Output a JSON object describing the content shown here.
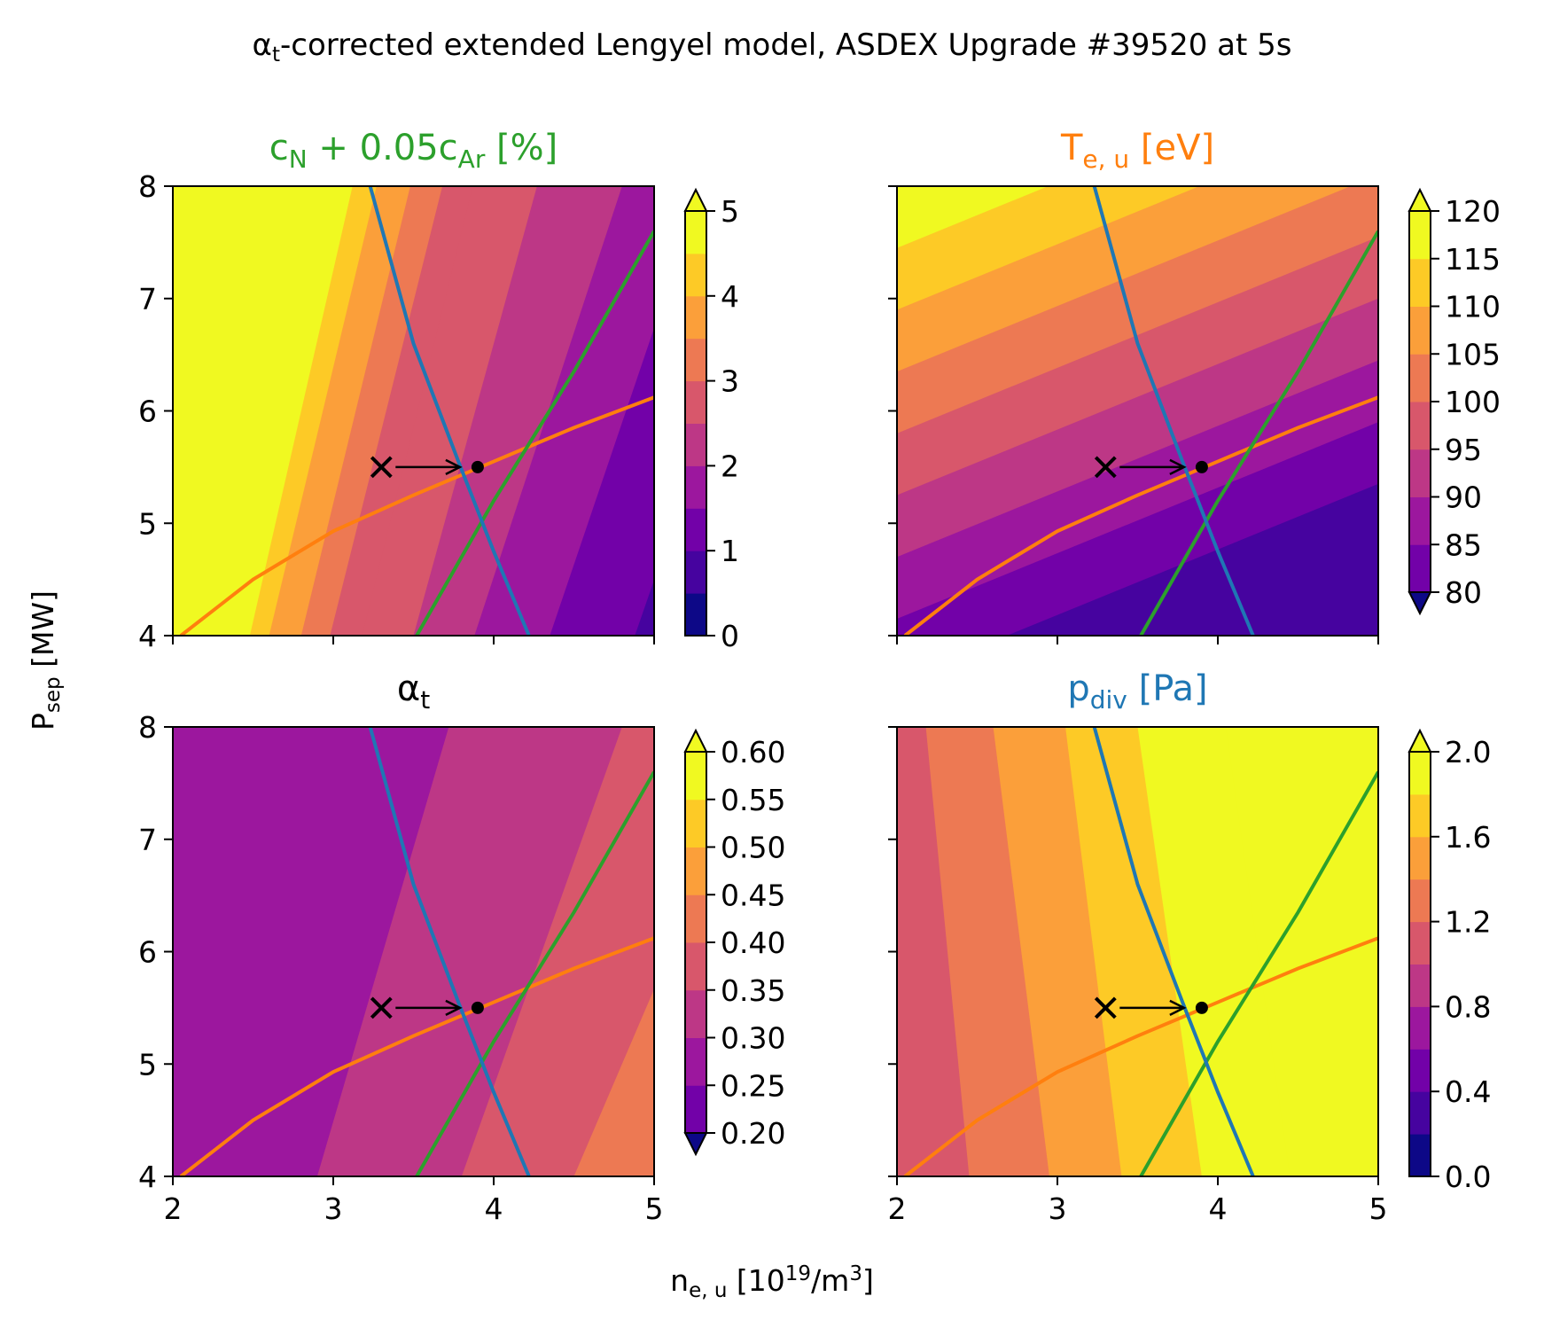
{
  "figure": {
    "suptitle": {
      "pre": "α",
      "sub": "t",
      "post": "-corrected extended Lengyel model, ASDEX Upgrade #39520 at 5s"
    },
    "xlabel": {
      "pre": "n",
      "sub": "e, u",
      "mid": " [10",
      "sup": "19",
      "mid2": "/m",
      "sup2": "3",
      "post": "]"
    },
    "ylabel": {
      "pre": "P",
      "sub": "sep",
      "post": " [MW]"
    }
  },
  "colors": {
    "title_cN": "#2ca02c",
    "title_Te": "#ff7f0e",
    "title_alpha": "#000000",
    "title_pdiv": "#1f77b4",
    "curve_blue": "#1f77b4",
    "curve_green": "#2ca02c",
    "curve_orange": "#ff7f0e",
    "plasma_levels": [
      "#0d0887",
      "#46039f",
      "#7201a8",
      "#9c179e",
      "#bd3786",
      "#d8576b",
      "#ed7953",
      "#fb9f3a",
      "#fdca26",
      "#f0f921"
    ]
  },
  "chart_data": [
    {
      "id": "cN",
      "type": "contourf",
      "title": {
        "pre": "c",
        "sub": "N",
        "mid": " + 0.05c",
        "sub2": "Ar",
        "post": " [%]"
      },
      "xlim": [
        2,
        5
      ],
      "ylim": [
        4,
        8
      ],
      "xticks": [
        "2",
        "3",
        "4",
        "5"
      ],
      "yticks": [
        "4",
        "5",
        "6",
        "7",
        "8"
      ],
      "show_xticklabels": false,
      "show_yticklabels": true,
      "colorbar": {
        "levels": [
          0,
          0.5,
          1,
          1.5,
          2,
          2.5,
          3,
          3.5,
          4,
          4.5,
          5
        ],
        "ticks": [
          "0",
          "1",
          "2",
          "3",
          "4",
          "5"
        ],
        "extend": "max"
      },
      "field_samples": [
        {
          "x": 2.0,
          "y": 4.0,
          "z": 5.5
        },
        {
          "x": 2.5,
          "y": 4.0,
          "z": 4.3
        },
        {
          "x": 3.0,
          "y": 4.0,
          "z": 3.2
        },
        {
          "x": 3.5,
          "y": 4.0,
          "z": 2.3
        },
        {
          "x": 4.0,
          "y": 4.0,
          "z": 1.4
        },
        {
          "x": 4.5,
          "y": 4.0,
          "z": 0.8
        },
        {
          "x": 5.0,
          "y": 4.0,
          "z": 0.3
        },
        {
          "x": 3.3,
          "y": 8.0,
          "z": 5.0
        },
        {
          "x": 4.0,
          "y": 8.0,
          "z": 3.5
        },
        {
          "x": 5.0,
          "y": 8.0,
          "z": 2.0
        }
      ]
    },
    {
      "id": "Te",
      "type": "contourf",
      "title": {
        "pre": "T",
        "sub": "e, u",
        "post": " [eV]"
      },
      "xlim": [
        2,
        5
      ],
      "ylim": [
        4,
        8
      ],
      "xticks": [
        "2",
        "3",
        "4",
        "5"
      ],
      "yticks": [
        "4",
        "5",
        "6",
        "7",
        "8"
      ],
      "show_xticklabels": false,
      "show_yticklabels": false,
      "colorbar": {
        "levels": [
          80,
          85,
          90,
          95,
          100,
          105,
          110,
          115,
          120
        ],
        "ticks": [
          "80",
          "85",
          "90",
          "95",
          "100",
          "105",
          "110",
          "115",
          "120"
        ],
        "extend": "both"
      },
      "field_samples": [
        {
          "x": 2.0,
          "y": 8.0,
          "z": 122
        },
        {
          "x": 2.0,
          "y": 6.0,
          "z": 110
        },
        {
          "x": 2.0,
          "y": 4.0,
          "z": 97
        },
        {
          "x": 3.0,
          "y": 5.0,
          "z": 100
        },
        {
          "x": 4.0,
          "y": 5.5,
          "z": 98
        },
        {
          "x": 5.0,
          "y": 8.0,
          "z": 107
        },
        {
          "x": 5.0,
          "y": 6.0,
          "z": 100
        },
        {
          "x": 5.0,
          "y": 4.0,
          "z": 88
        }
      ]
    },
    {
      "id": "alpha_t",
      "type": "contourf",
      "title": {
        "pre": "α",
        "sub": "t",
        "post": ""
      },
      "xlim": [
        2,
        5
      ],
      "ylim": [
        4,
        8
      ],
      "xticks": [
        "2",
        "3",
        "4",
        "5"
      ],
      "yticks": [
        "4",
        "5",
        "6",
        "7",
        "8"
      ],
      "show_xticklabels": true,
      "show_yticklabels": true,
      "colorbar": {
        "levels": [
          0.2,
          0.25,
          0.3,
          0.35,
          0.4,
          0.45,
          0.5,
          0.55,
          0.6
        ],
        "ticks": [
          "0.20",
          "0.25",
          "0.30",
          "0.35",
          "0.40",
          "0.45",
          "0.50",
          "0.55",
          "0.60"
        ],
        "extend": "both"
      },
      "field_samples": [
        {
          "x": 2.0,
          "y": 6.0,
          "z": 0.33
        },
        {
          "x": 3.0,
          "y": 4.0,
          "z": 0.36
        },
        {
          "x": 3.8,
          "y": 7.0,
          "z": 0.37
        },
        {
          "x": 4.0,
          "y": 4.0,
          "z": 0.42
        },
        {
          "x": 4.8,
          "y": 7.0,
          "z": 0.42
        },
        {
          "x": 5.0,
          "y": 4.5,
          "z": 0.47
        }
      ]
    },
    {
      "id": "pdiv",
      "type": "contourf",
      "title": {
        "pre": "p",
        "sub": "div",
        "post": " [Pa]"
      },
      "xlim": [
        2,
        5
      ],
      "ylim": [
        4,
        8
      ],
      "xticks": [
        "2",
        "3",
        "4",
        "5"
      ],
      "yticks": [
        "4",
        "5",
        "6",
        "7",
        "8"
      ],
      "show_xticklabels": true,
      "show_yticklabels": false,
      "colorbar": {
        "levels": [
          0,
          0.2,
          0.4,
          0.6,
          0.8,
          1.0,
          1.2,
          1.4,
          1.6,
          1.8,
          2.0
        ],
        "ticks": [
          "0.0",
          "0.4",
          "0.8",
          "1.2",
          "1.6",
          "2.0"
        ],
        "extend": "max"
      },
      "field_samples": [
        {
          "x": 2.0,
          "y": 4.0,
          "z": 0.9
        },
        {
          "x": 2.5,
          "y": 4.0,
          "z": 1.2
        },
        {
          "x": 3.0,
          "y": 4.0,
          "z": 1.45
        },
        {
          "x": 3.5,
          "y": 4.0,
          "z": 1.7
        },
        {
          "x": 4.0,
          "y": 4.0,
          "z": 1.9
        },
        {
          "x": 4.5,
          "y": 4.0,
          "z": 2.1
        },
        {
          "x": 2.3,
          "y": 8.0,
          "z": 1.4
        },
        {
          "x": 3.5,
          "y": 8.0,
          "z": 1.9
        },
        {
          "x": 4.0,
          "y": 8.0,
          "z": 2.1
        }
      ]
    }
  ],
  "overlay": {
    "blue_curve": [
      [
        3.23,
        8.0
      ],
      [
        3.5,
        6.6
      ],
      [
        3.78,
        5.55
      ],
      [
        4.0,
        4.75
      ],
      [
        4.22,
        4.0
      ]
    ],
    "green_curve": [
      [
        3.52,
        4.0
      ],
      [
        4.0,
        5.2
      ],
      [
        4.5,
        6.35
      ],
      [
        5.0,
        7.6
      ]
    ],
    "orange_curve": [
      [
        2.05,
        4.0
      ],
      [
        2.5,
        4.5
      ],
      [
        3.0,
        4.93
      ],
      [
        3.5,
        5.25
      ],
      [
        4.0,
        5.55
      ],
      [
        4.5,
        5.85
      ],
      [
        5.0,
        6.12
      ]
    ],
    "start_marker": [
      3.3,
      5.5
    ],
    "end_point": [
      3.9,
      5.5
    ]
  }
}
